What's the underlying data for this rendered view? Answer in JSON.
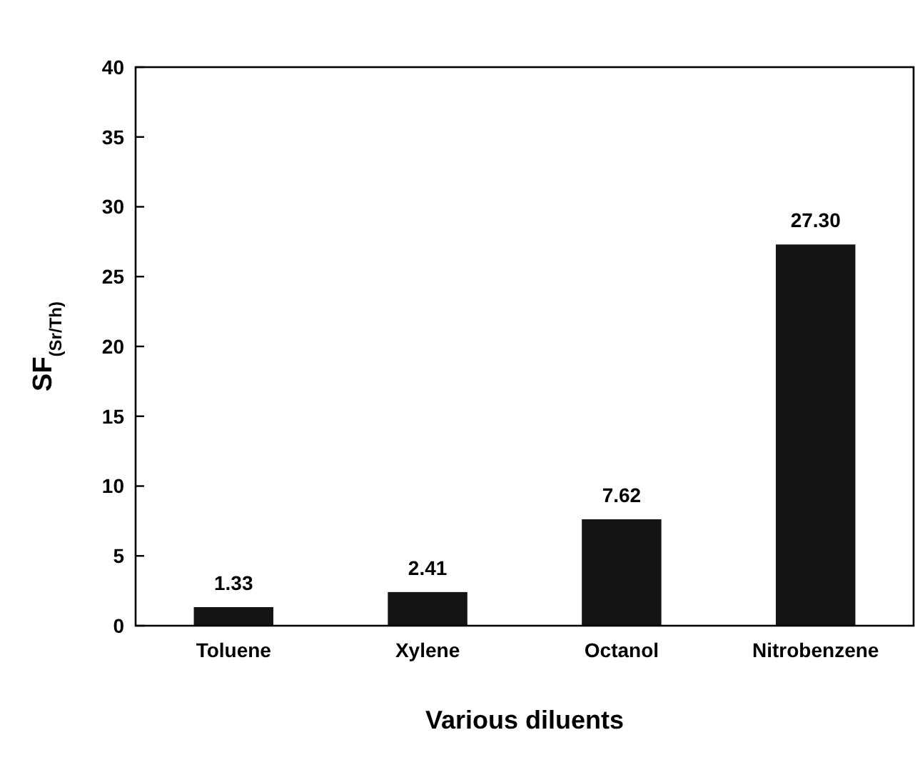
{
  "chart_data": {
    "type": "bar",
    "xlabel": "Various diluents",
    "ylabel": "SF$_{(Sr/Th)}$",
    "categories": [
      "Toluene",
      "Xylene",
      "Octanol",
      "Nitrobenzene"
    ],
    "values": [
      1.33,
      2.41,
      7.62,
      27.3
    ],
    "value_labels": [
      "1.33",
      "2.41",
      "7.62",
      "27.30"
    ],
    "color": "#141414",
    "ylim": [
      0,
      40
    ],
    "yticks": [
      0,
      5,
      10,
      15,
      20,
      25,
      30,
      35,
      40
    ],
    "grid": false
  }
}
